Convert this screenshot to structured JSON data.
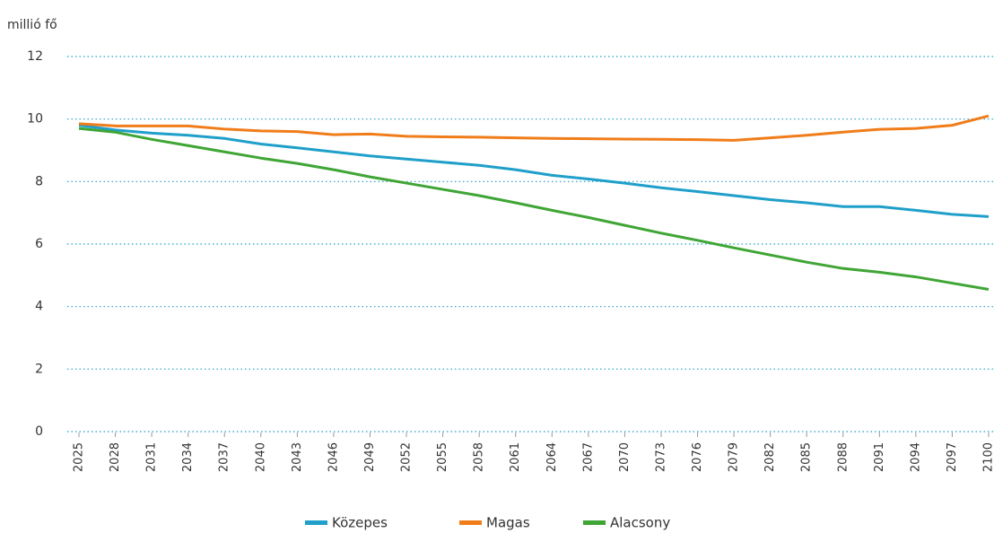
{
  "chart_data": {
    "type": "line",
    "y_label": "millió fő",
    "x": [
      2025,
      2028,
      2031,
      2034,
      2037,
      2040,
      2043,
      2046,
      2049,
      2052,
      2055,
      2058,
      2061,
      2064,
      2067,
      2070,
      2073,
      2076,
      2079,
      2082,
      2085,
      2088,
      2091,
      2094,
      2097,
      2100
    ],
    "xlim": [
      2025,
      2100
    ],
    "xticks": [
      2025,
      2028,
      2031,
      2034,
      2037,
      2040,
      2043,
      2046,
      2049,
      2052,
      2055,
      2058,
      2061,
      2064,
      2067,
      2070,
      2073,
      2076,
      2079,
      2082,
      2085,
      2088,
      2091,
      2094,
      2097,
      2100
    ],
    "ylim": [
      0,
      12
    ],
    "yticks": [
      0,
      2,
      4,
      6,
      8,
      10,
      12
    ],
    "grid": true,
    "legend": "bottom",
    "series": [
      {
        "name": "Közepes",
        "color": "#1f9fc9",
        "values": [
          9.8,
          9.65,
          9.55,
          9.48,
          9.38,
          9.2,
          9.08,
          8.95,
          8.82,
          8.72,
          8.62,
          8.52,
          8.38,
          8.2,
          8.08,
          7.95,
          7.8,
          7.68,
          7.55,
          7.42,
          7.32,
          7.2,
          7.2,
          7.08,
          6.95,
          6.88
        ]
      },
      {
        "name": "Magas",
        "color": "#f07d1a",
        "values": [
          9.85,
          9.78,
          9.78,
          9.78,
          9.68,
          9.62,
          9.6,
          9.5,
          9.52,
          9.45,
          9.43,
          9.42,
          9.4,
          9.38,
          9.37,
          9.36,
          9.35,
          9.34,
          9.32,
          9.4,
          9.48,
          9.58,
          9.67,
          9.7,
          9.8,
          10.1
        ]
      },
      {
        "name": "Alacsony",
        "color": "#3fa535",
        "values": [
          9.7,
          9.58,
          9.35,
          9.15,
          8.95,
          8.75,
          8.58,
          8.38,
          8.15,
          7.95,
          7.75,
          7.55,
          7.32,
          7.08,
          6.85,
          6.6,
          6.35,
          6.12,
          5.88,
          5.65,
          5.42,
          5.22,
          5.1,
          4.95,
          4.75,
          4.55
        ]
      }
    ]
  }
}
